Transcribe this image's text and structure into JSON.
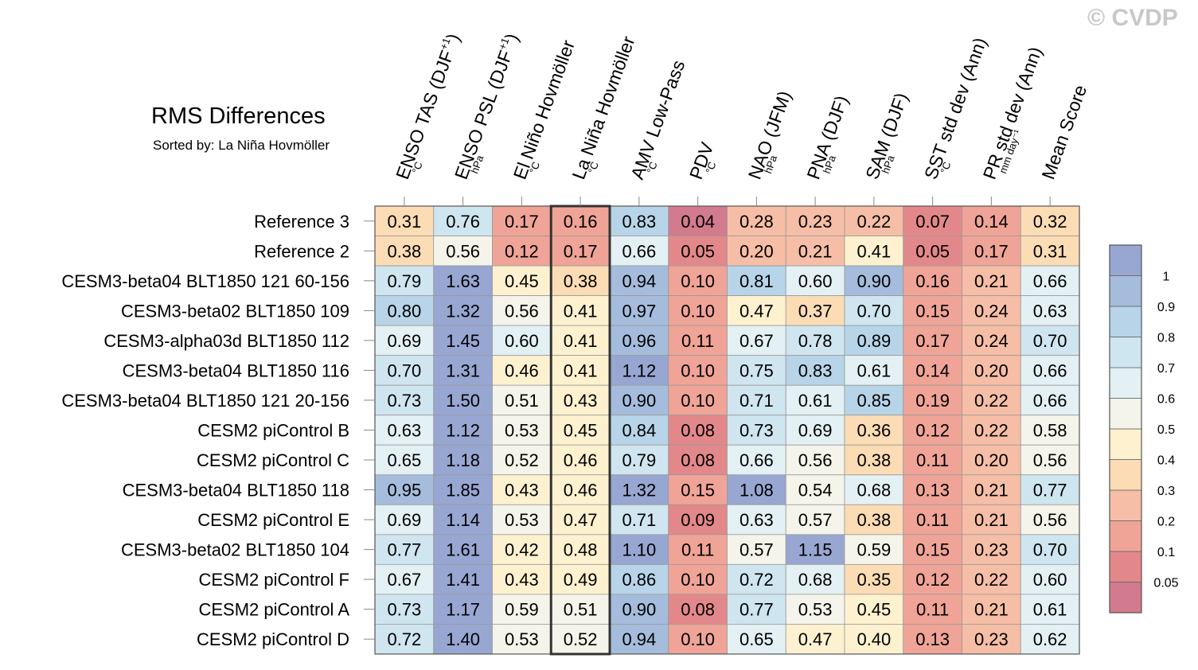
{
  "watermark": "© CVDP",
  "chart_data": {
    "type": "heatmap",
    "title": "RMS Differences",
    "subtitle": "Sorted by: La Niña Hovmöller",
    "highlighted_column": 3,
    "columns": [
      {
        "label": "ENSO TAS (DJF",
        "sup": "+1",
        "close": ")",
        "unit": "°C"
      },
      {
        "label": "ENSO PSL (DJF",
        "sup": "+1",
        "close": ")",
        "unit": "hPa"
      },
      {
        "label": "El Niño Hovmöller",
        "sup": "",
        "close": "",
        "unit": "°C"
      },
      {
        "label": "La Niña Hovmöller",
        "sup": "",
        "close": "",
        "unit": "°C"
      },
      {
        "label": "AMV Low-Pass",
        "sup": "",
        "close": "",
        "unit": "°C"
      },
      {
        "label": "PDV",
        "sup": "",
        "close": "",
        "unit": "°C"
      },
      {
        "label": "NAO (JFM)",
        "sup": "",
        "close": "",
        "unit": "hPa"
      },
      {
        "label": "PNA (DJF)",
        "sup": "",
        "close": "",
        "unit": "hPa"
      },
      {
        "label": "SAM (DJF)",
        "sup": "",
        "close": "",
        "unit": "hPa"
      },
      {
        "label": "SST std dev (Ann)",
        "sup": "",
        "close": "",
        "unit": "°C"
      },
      {
        "label": "PR std dev (Ann)",
        "sup": "",
        "close": "",
        "unit": "mm day⁻¹"
      },
      {
        "label": "Mean Score",
        "sup": "",
        "close": "",
        "unit": ""
      }
    ],
    "rows": [
      {
        "name": "Reference 3",
        "values": [
          0.31,
          0.76,
          0.17,
          0.16,
          0.83,
          0.04,
          0.28,
          0.23,
          0.22,
          0.07,
          0.14,
          0.32
        ]
      },
      {
        "name": "Reference 2",
        "values": [
          0.38,
          0.56,
          0.12,
          0.17,
          0.66,
          0.05,
          0.2,
          0.21,
          0.41,
          0.05,
          0.17,
          0.31
        ]
      },
      {
        "name": "CESM3-beta04 BLT1850 121 60-156",
        "values": [
          0.79,
          1.63,
          0.45,
          0.38,
          0.94,
          0.1,
          0.81,
          0.6,
          0.9,
          0.16,
          0.21,
          0.66
        ]
      },
      {
        "name": "CESM3-beta02 BLT1850 109",
        "values": [
          0.8,
          1.32,
          0.56,
          0.41,
          0.97,
          0.1,
          0.47,
          0.37,
          0.7,
          0.15,
          0.24,
          0.63
        ]
      },
      {
        "name": "CESM3-alpha03d BLT1850 112",
        "values": [
          0.69,
          1.45,
          0.6,
          0.41,
          0.96,
          0.11,
          0.67,
          0.78,
          0.89,
          0.17,
          0.24,
          0.7
        ]
      },
      {
        "name": "CESM3-beta04 BLT1850 116",
        "values": [
          0.7,
          1.31,
          0.46,
          0.41,
          1.12,
          0.1,
          0.75,
          0.83,
          0.61,
          0.14,
          0.2,
          0.66
        ]
      },
      {
        "name": "CESM3-beta04 BLT1850 121 20-156",
        "values": [
          0.73,
          1.5,
          0.51,
          0.43,
          0.9,
          0.1,
          0.71,
          0.61,
          0.85,
          0.19,
          0.22,
          0.66
        ]
      },
      {
        "name": "CESM2 piControl B",
        "values": [
          0.63,
          1.12,
          0.53,
          0.45,
          0.84,
          0.08,
          0.73,
          0.69,
          0.36,
          0.12,
          0.22,
          0.58
        ]
      },
      {
        "name": "CESM2 piControl C",
        "values": [
          0.65,
          1.18,
          0.52,
          0.46,
          0.79,
          0.08,
          0.66,
          0.56,
          0.38,
          0.11,
          0.2,
          0.56
        ]
      },
      {
        "name": "CESM3-beta04 BLT1850 118",
        "values": [
          0.95,
          1.85,
          0.43,
          0.46,
          1.32,
          0.15,
          1.08,
          0.54,
          0.68,
          0.13,
          0.21,
          0.77
        ]
      },
      {
        "name": "CESM2 piControl E",
        "values": [
          0.69,
          1.14,
          0.53,
          0.47,
          0.71,
          0.09,
          0.63,
          0.57,
          0.38,
          0.11,
          0.21,
          0.56
        ]
      },
      {
        "name": "CESM3-beta02 BLT1850 104",
        "values": [
          0.77,
          1.61,
          0.42,
          0.48,
          1.1,
          0.11,
          0.57,
          1.15,
          0.59,
          0.15,
          0.23,
          0.7
        ]
      },
      {
        "name": "CESM2 piControl F",
        "values": [
          0.67,
          1.41,
          0.43,
          0.49,
          0.86,
          0.1,
          0.72,
          0.68,
          0.35,
          0.12,
          0.22,
          0.6
        ]
      },
      {
        "name": "CESM2 piControl A",
        "values": [
          0.73,
          1.17,
          0.59,
          0.51,
          0.9,
          0.08,
          0.77,
          0.53,
          0.45,
          0.11,
          0.21,
          0.61
        ]
      },
      {
        "name": "CESM2 piControl D",
        "values": [
          0.72,
          1.4,
          0.53,
          0.52,
          0.94,
          0.1,
          0.65,
          0.47,
          0.4,
          0.13,
          0.23,
          0.62
        ]
      }
    ],
    "colorbar": {
      "levels": [
        0.05,
        0.1,
        0.2,
        0.3,
        0.4,
        0.5,
        0.6,
        0.7,
        0.8,
        0.9,
        1
      ],
      "tick_labels": [
        "0.05",
        "0.1",
        "0.2",
        "0.3",
        "0.4",
        "0.5",
        "0.6",
        "0.7",
        "0.8",
        "0.9",
        "1"
      ],
      "colors": [
        "#d27a8e",
        "#e3888a",
        "#efa497",
        "#f6bea6",
        "#fbdcb5",
        "#fdf1cf",
        "#f4f4ea",
        "#e3f0f4",
        "#cfe5ef",
        "#b7d4e8",
        "#a5bcdc",
        "#98a6d2"
      ]
    }
  }
}
